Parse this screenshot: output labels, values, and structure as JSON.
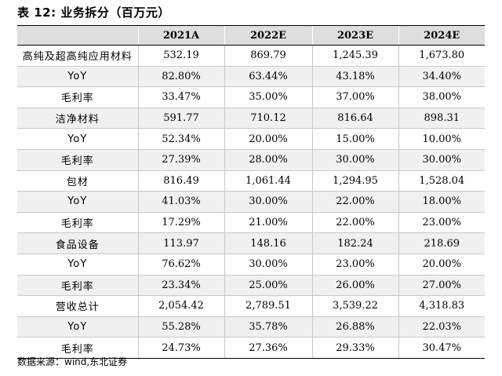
{
  "title": "表 12:  业务拆分（百万元）",
  "columns": [
    "",
    "2021A",
    "2022E",
    "2023E",
    "2024E"
  ],
  "rows": [
    {
      "label": "高纯及超高纯应用材料",
      "values": [
        "532.19",
        "869.79",
        "1,245.39",
        "1,673.80"
      ]
    },
    {
      "label": "YoY",
      "values": [
        "82.80%",
        "63.44%",
        "43.18%",
        "34.40%"
      ]
    },
    {
      "label": "毛利率",
      "values": [
        "33.47%",
        "35.00%",
        "37.00%",
        "38.00%"
      ]
    },
    {
      "label": "洁净材料",
      "values": [
        "591.77",
        "710.12",
        "816.64",
        "898.31"
      ]
    },
    {
      "label": "YoY",
      "values": [
        "52.34%",
        "20.00%",
        "15.00%",
        "10.00%"
      ]
    },
    {
      "label": "毛利率",
      "values": [
        "27.39%",
        "28.00%",
        "30.00%",
        "30.00%"
      ]
    },
    {
      "label": "包材",
      "values": [
        "816.49",
        "1,061.44",
        "1,294.95",
        "1,528.04"
      ]
    },
    {
      "label": "YoY",
      "values": [
        "41.03%",
        "30.00%",
        "22.00%",
        "18.00%"
      ]
    },
    {
      "label": "毛利率",
      "values": [
        "17.29%",
        "21.00%",
        "22.00%",
        "23.00%"
      ]
    },
    {
      "label": "食品设备",
      "values": [
        "113.97",
        "148.16",
        "182.24",
        "218.69"
      ]
    },
    {
      "label": "YoY",
      "values": [
        "76.62%",
        "30.00%",
        "23.00%",
        "20.00%"
      ]
    },
    {
      "label": "毛利率",
      "values": [
        "23.34%",
        "25.00%",
        "26.00%",
        "27.00%"
      ]
    },
    {
      "label": "营收总计",
      "values": [
        "2,054.42",
        "2,789.51",
        "3,539.22",
        "4,318.83"
      ]
    },
    {
      "label": "YoY",
      "values": [
        "55.28%",
        "35.78%",
        "26.88%",
        "22.03%"
      ]
    },
    {
      "label": "毛利率",
      "values": [
        "24.73%",
        "27.36%",
        "29.33%",
        "30.47%"
      ]
    }
  ],
  "source": "数据来源：wind,东北证券"
}
